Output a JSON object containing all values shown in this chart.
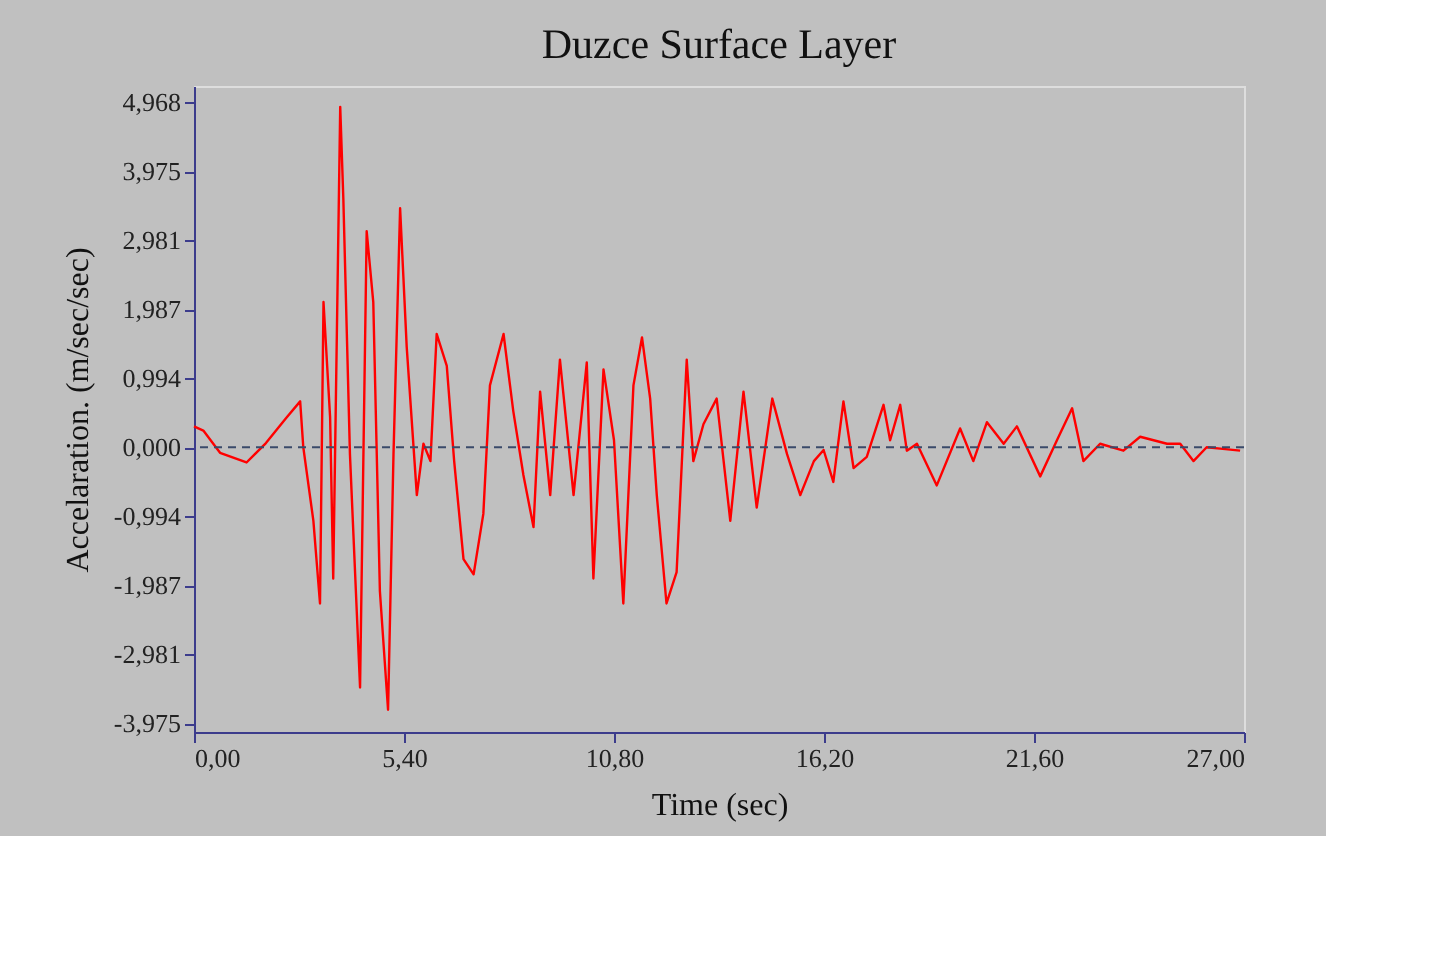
{
  "chart_data": {
    "type": "line",
    "title": "Duzce  Surface Layer",
    "xlabel": "Time (sec)",
    "ylabel": "Accelaration.  (m/sec/sec)",
    "x": [
      0.0,
      0.24,
      0.67,
      1.35,
      1.85,
      2.37,
      2.73,
      2.81,
      3.07,
      3.24,
      3.33,
      3.5,
      3.58,
      3.76,
      3.84,
      4.01,
      4.27,
      4.44,
      4.61,
      4.78,
      4.99,
      5.13,
      5.3,
      5.47,
      5.73,
      5.9,
      6.08,
      6.24,
      6.5,
      6.69,
      6.93,
      7.19,
      7.44,
      7.61,
      7.96,
      8.21,
      8.47,
      8.73,
      8.9,
      9.16,
      9.41,
      9.76,
      10.1,
      10.27,
      10.53,
      10.8,
      11.04,
      11.3,
      11.52,
      11.73,
      11.9,
      12.15,
      12.41,
      12.67,
      12.84,
      13.1,
      13.44,
      13.79,
      14.13,
      14.47,
      14.87,
      15.25,
      15.59,
      15.94,
      16.19,
      16.44,
      16.7,
      16.96,
      17.3,
      17.73,
      17.9,
      18.16,
      18.33,
      18.59,
      19.1,
      19.7,
      20.04,
      20.39,
      20.82,
      21.16,
      21.76,
      22.19,
      22.58,
      22.87,
      23.3,
      23.9,
      24.33,
      25.02,
      25.36,
      25.7,
      26.04,
      26.39,
      26.9
    ],
    "series": [
      {
        "color": "#ff0000",
        "values": [
          0.3,
          0.24,
          -0.08,
          -0.22,
          0.06,
          0.42,
          0.66,
          0.0,
          -1.06,
          -2.25,
          2.09,
          0.43,
          -1.89,
          4.9,
          3.58,
          -0.1,
          -3.46,
          3.11,
          2.09,
          -2.07,
          -3.78,
          -0.1,
          3.44,
          1.44,
          -0.69,
          0.05,
          -0.2,
          1.63,
          1.17,
          -0.2,
          -1.61,
          -1.83,
          -0.96,
          0.89,
          1.63,
          0.52,
          -0.4,
          -1.15,
          0.8,
          -0.69,
          1.26,
          -0.69,
          1.22,
          -1.89,
          1.12,
          0.1,
          -2.25,
          0.89,
          1.58,
          0.7,
          -0.69,
          -2.25,
          -1.8,
          1.26,
          -0.2,
          0.33,
          0.7,
          -1.06,
          0.8,
          -0.87,
          0.7,
          -0.1,
          -0.69,
          -0.2,
          -0.04,
          -0.5,
          0.66,
          -0.3,
          -0.14,
          0.61,
          0.1,
          0.61,
          -0.05,
          0.05,
          -0.55,
          0.27,
          -0.2,
          0.36,
          0.05,
          0.3,
          -0.42,
          0.1,
          0.56,
          -0.2,
          0.05,
          -0.05,
          0.15,
          0.05,
          0.05,
          -0.2,
          0.0,
          -0.02,
          -0.05
        ]
      }
    ],
    "xlim": [
      0,
      27
    ],
    "ylim": [
      -4.1,
      5.2
    ],
    "xticks": [
      {
        "value": 0,
        "label": "0,00"
      },
      {
        "value": 5.4,
        "label": "5,40"
      },
      {
        "value": 10.8,
        "label": "10,80"
      },
      {
        "value": 16.2,
        "label": "16,20"
      },
      {
        "value": 21.6,
        "label": "21,60"
      },
      {
        "value": 27,
        "label": "27,00"
      }
    ],
    "yticks": [
      {
        "value": 4.968,
        "label": "4,968"
      },
      {
        "value": 3.975,
        "label": "3,975"
      },
      {
        "value": 2.981,
        "label": "2,981"
      },
      {
        "value": 1.987,
        "label": "1,987"
      },
      {
        "value": 0.994,
        "label": "0,994"
      },
      {
        "value": 0,
        "label": "0,000"
      },
      {
        "value": -0.994,
        "label": "-0,994"
      },
      {
        "value": -1.987,
        "label": "-1,987"
      },
      {
        "value": -2.981,
        "label": "-2,981"
      },
      {
        "value": -3.975,
        "label": "-3,975"
      }
    ],
    "ref_lines": [
      {
        "axis": "y",
        "value": 0,
        "color": "#3a4a6a",
        "line_style": "dashed"
      }
    ],
    "grid": false
  }
}
